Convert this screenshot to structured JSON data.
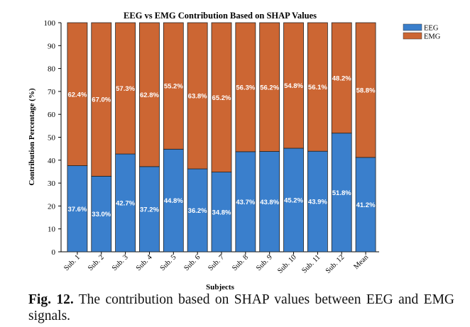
{
  "chart_data": {
    "type": "bar",
    "stacked": true,
    "title": "EEG vs EMG Contribution Based on SHAP Values",
    "xlabel": "Subjects",
    "ylabel": "Contribution Percentage (%)",
    "ylim": [
      0,
      100
    ],
    "yticks": [
      0,
      10,
      20,
      30,
      40,
      50,
      60,
      70,
      80,
      90,
      100
    ],
    "categories": [
      "Sub. 1",
      "Sub. 2",
      "Sub. 3",
      "Sub. 4",
      "Sub. 5",
      "Sub. 6",
      "Sub. 7",
      "Sub. 8",
      "Sub. 9",
      "Sub. 10",
      "Sub. 11",
      "Sub. 12",
      "Mean"
    ],
    "series": [
      {
        "name": "EEG",
        "color": "#3a7fcc",
        "values": [
          37.6,
          33.0,
          42.7,
          37.2,
          44.8,
          36.2,
          34.8,
          43.7,
          43.8,
          45.2,
          43.9,
          51.8,
          41.2
        ]
      },
      {
        "name": "EMG",
        "color": "#cc6633",
        "values": [
          62.4,
          67.0,
          57.3,
          62.8,
          55.2,
          63.8,
          65.2,
          56.3,
          56.2,
          54.8,
          56.1,
          48.2,
          58.8
        ]
      }
    ],
    "legend": "top-right outside",
    "grid": false
  },
  "caption": {
    "label": "Fig. 12.",
    "text": " The contribution based on SHAP values between EEG and EMG signals."
  }
}
